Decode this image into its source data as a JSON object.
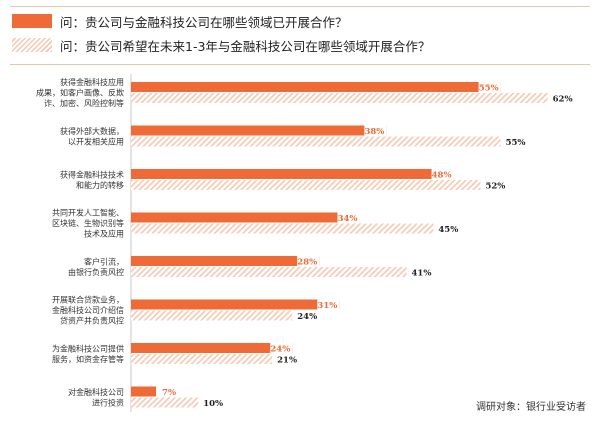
{
  "legend": {
    "current": "问：贵公司与金融科技公司在哪些领域已开展合作？",
    "future": "问：贵公司希望在未来1-3年与金融科技公司在哪些领域开展合作？"
  },
  "note": "调研对象：银行业受访者",
  "colors": {
    "current": "#ee6a36",
    "future_hatch": "#f6c8b2",
    "current_label": "#ee6a36",
    "future_label": "#222222",
    "border": "#c3a06c"
  },
  "chart_data": {
    "type": "bar",
    "orientation": "horizontal",
    "categories": [
      [
        "获得金融科技应用",
        "成果，如客户画像、反欺",
        "诈、加密、风险控制等"
      ],
      [
        "获得外部大数据，",
        "以开发相关应用"
      ],
      [
        "获得金融科技技术",
        "和能力的转移"
      ],
      [
        "共同开发人工智能、",
        "区块链、生物识别等",
        "技术及应用"
      ],
      [
        "客户引流，",
        "由银行负责风控"
      ],
      [
        "开展联合贷款业务，",
        "金融科技公司介绍信",
        "贷资产并负责风控"
      ],
      [
        "为金融科技公司提供",
        "服务，如资金存管等"
      ],
      [
        "对金融科技公司",
        "进行投资"
      ]
    ],
    "series": [
      {
        "name": "问：贵公司与金融科技公司在哪些领域已开展合作？",
        "values": [
          55,
          38,
          48,
          34,
          28,
          31,
          24,
          7
        ],
        "labels": [
          "55%",
          "38%",
          "48%",
          "34%",
          "28%",
          "31%",
          "24%",
          "7%"
        ]
      },
      {
        "name": "问：贵公司希望在未来1-3年与金融科技公司在哪些领域开展合作？",
        "values": [
          62,
          55,
          52,
          45,
          41,
          24,
          21,
          10
        ],
        "labels": [
          "62%",
          "55%",
          "52%",
          "45%",
          "41%",
          "24%",
          "21%",
          "10%"
        ]
      }
    ],
    "xlim": [
      0,
      70
    ]
  }
}
